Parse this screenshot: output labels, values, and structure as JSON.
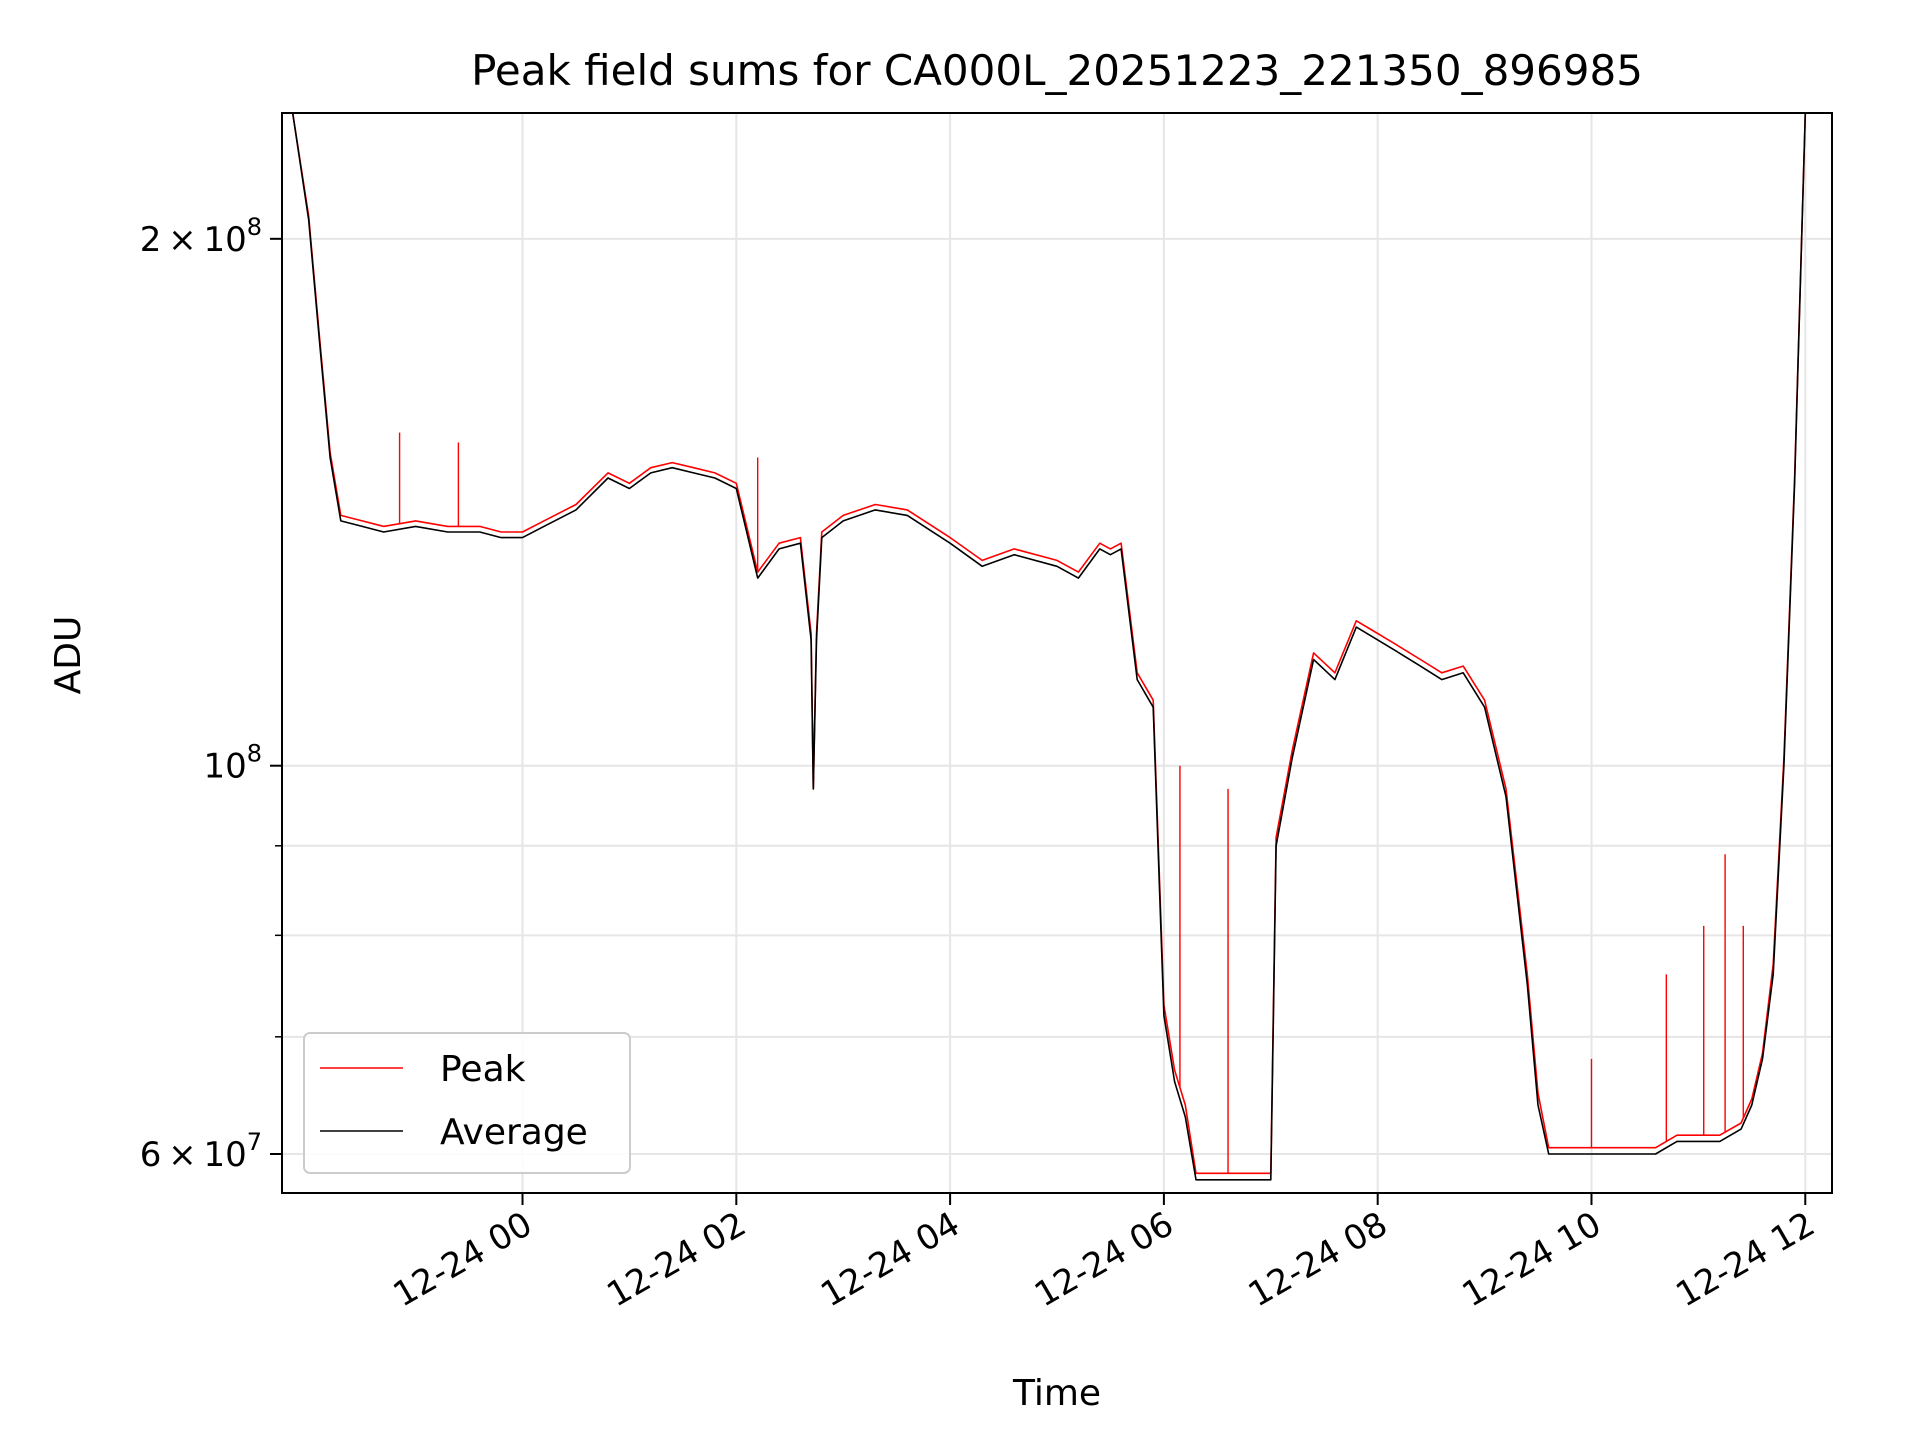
{
  "chart_data": {
    "type": "line",
    "title": "Peak field sums for CA000L_20251223_221350_896985",
    "xlabel": "Time",
    "ylabel": "ADU",
    "yscale": "log",
    "ylim": [
      57000000,
      236000000
    ],
    "xlim_hours": [
      -2.25,
      12.25
    ],
    "grid": true,
    "x_ticks": [
      {
        "hours": 0,
        "label": "12-24 00"
      },
      {
        "hours": 2,
        "label": "12-24 02"
      },
      {
        "hours": 4,
        "label": "12-24 04"
      },
      {
        "hours": 6,
        "label": "12-24 06"
      },
      {
        "hours": 8,
        "label": "12-24 08"
      },
      {
        "hours": 10,
        "label": "12-24 10"
      },
      {
        "hours": 12,
        "label": "12-24 12"
      }
    ],
    "y_major_ticks": [
      {
        "value": 60000000,
        "mantissa": "6 × 10",
        "exp": "7"
      },
      {
        "value": 100000000,
        "mantissa": "10",
        "exp": "8"
      },
      {
        "value": 200000000,
        "mantissa": "2 × 10",
        "exp": "8"
      }
    ],
    "y_minor_ticks": [
      70000000,
      80000000,
      90000000
    ],
    "legend": {
      "position": "lower-left",
      "entries": [
        {
          "label": "Peak",
          "color": "#ff0000"
        },
        {
          "label": "Average",
          "color": "#000000"
        }
      ]
    },
    "series": [
      {
        "name": "Average",
        "color": "#000000",
        "x_hours": [
          -2.15,
          -2.0,
          -1.9,
          -1.8,
          -1.7,
          -1.5,
          -1.3,
          -1.0,
          -0.7,
          -0.4,
          -0.2,
          0.0,
          0.2,
          0.5,
          0.8,
          1.0,
          1.2,
          1.4,
          1.6,
          1.8,
          2.0,
          2.2,
          2.4,
          2.6,
          2.7,
          2.72,
          2.75,
          2.8,
          3.0,
          3.3,
          3.6,
          4.0,
          4.3,
          4.6,
          5.0,
          5.2,
          5.4,
          5.5,
          5.6,
          5.75,
          5.9,
          6.0,
          6.1,
          6.2,
          6.3,
          6.5,
          6.8,
          7.0,
          7.05,
          7.2,
          7.4,
          7.6,
          7.8,
          8.0,
          8.2,
          8.4,
          8.6,
          8.8,
          9.0,
          9.2,
          9.4,
          9.5,
          9.6,
          9.8,
          10.0,
          10.2,
          10.4,
          10.6,
          10.8,
          11.0,
          11.2,
          11.4,
          11.5,
          11.6,
          11.7,
          11.8,
          11.9,
          12.0
        ],
        "values": [
          236000000,
          205000000,
          175000000,
          150000000,
          138000000,
          137000000,
          136000000,
          137000000,
          136000000,
          136000000,
          135000000,
          135000000,
          137000000,
          140000000,
          146000000,
          144000000,
          147000000,
          148000000,
          147000000,
          146000000,
          144000000,
          128000000,
          133000000,
          134000000,
          118000000,
          97000000,
          118000000,
          135000000,
          138000000,
          140000000,
          139000000,
          134000000,
          130000000,
          132000000,
          130000000,
          128000000,
          133000000,
          132000000,
          133000000,
          112000000,
          108000000,
          72000000,
          66000000,
          63000000,
          58000000,
          58000000,
          58000000,
          58000000,
          90000000,
          101000000,
          115000000,
          112000000,
          120000000,
          118000000,
          116000000,
          114000000,
          112000000,
          113000000,
          108000000,
          96000000,
          75000000,
          64000000,
          60000000,
          60000000,
          60000000,
          60000000,
          60000000,
          60000000,
          61000000,
          61000000,
          61000000,
          62000000,
          64000000,
          68000000,
          76000000,
          100000000,
          145000000,
          236000000
        ]
      },
      {
        "name": "Peak",
        "color": "#ff0000",
        "x_hours": [
          -2.15,
          -2.0,
          -1.9,
          -1.8,
          -1.7,
          -1.5,
          -1.3,
          -1.0,
          -0.7,
          -0.4,
          -0.2,
          0.0,
          0.2,
          0.5,
          0.8,
          1.0,
          1.2,
          1.4,
          1.6,
          1.8,
          2.0,
          2.2,
          2.4,
          2.6,
          2.7,
          2.72,
          2.75,
          2.8,
          3.0,
          3.3,
          3.6,
          4.0,
          4.3,
          4.6,
          5.0,
          5.2,
          5.4,
          5.5,
          5.6,
          5.75,
          5.9,
          6.0,
          6.1,
          6.2,
          6.3,
          6.5,
          6.8,
          7.0,
          7.05,
          7.2,
          7.4,
          7.6,
          7.8,
          8.0,
          8.2,
          8.4,
          8.6,
          8.8,
          9.0,
          9.2,
          9.4,
          9.5,
          9.6,
          9.8,
          10.0,
          10.2,
          10.4,
          10.6,
          10.8,
          11.0,
          11.2,
          11.4,
          11.5,
          11.6,
          11.7,
          11.8,
          11.9,
          12.0
        ],
        "values": [
          236000000,
          206000000,
          176000000,
          151000000,
          139000000,
          138000000,
          137000000,
          138000000,
          137000000,
          137000000,
          136000000,
          136000000,
          138000000,
          141000000,
          147000000,
          145000000,
          148000000,
          149000000,
          148000000,
          147000000,
          145000000,
          129000000,
          134000000,
          135000000,
          119000000,
          97000000,
          119000000,
          136000000,
          139000000,
          141000000,
          140000000,
          135000000,
          131000000,
          133000000,
          131000000,
          129000000,
          134000000,
          133000000,
          134000000,
          113000000,
          109000000,
          73000000,
          67000000,
          64000000,
          58500000,
          58500000,
          58500000,
          58500000,
          91000000,
          102000000,
          116000000,
          113000000,
          121000000,
          119000000,
          117000000,
          115000000,
          113000000,
          114000000,
          109000000,
          97000000,
          76000000,
          65000000,
          60500000,
          60500000,
          60500000,
          60500000,
          60500000,
          60500000,
          61500000,
          61500000,
          61500000,
          62500000,
          64500000,
          68500000,
          77000000,
          101000000,
          146000000,
          236000000
        ],
        "spikes": [
          {
            "hours": -1.15,
            "value": 155000000
          },
          {
            "hours": -0.6,
            "value": 153000000
          },
          {
            "hours": 2.2,
            "value": 150000000
          },
          {
            "hours": 6.15,
            "value": 100000000
          },
          {
            "hours": 6.6,
            "value": 97000000
          },
          {
            "hours": 10.0,
            "value": 68000000
          },
          {
            "hours": 10.7,
            "value": 76000000
          },
          {
            "hours": 11.05,
            "value": 81000000
          },
          {
            "hours": 11.25,
            "value": 89000000
          },
          {
            "hours": 11.42,
            "value": 81000000
          }
        ]
      }
    ]
  }
}
